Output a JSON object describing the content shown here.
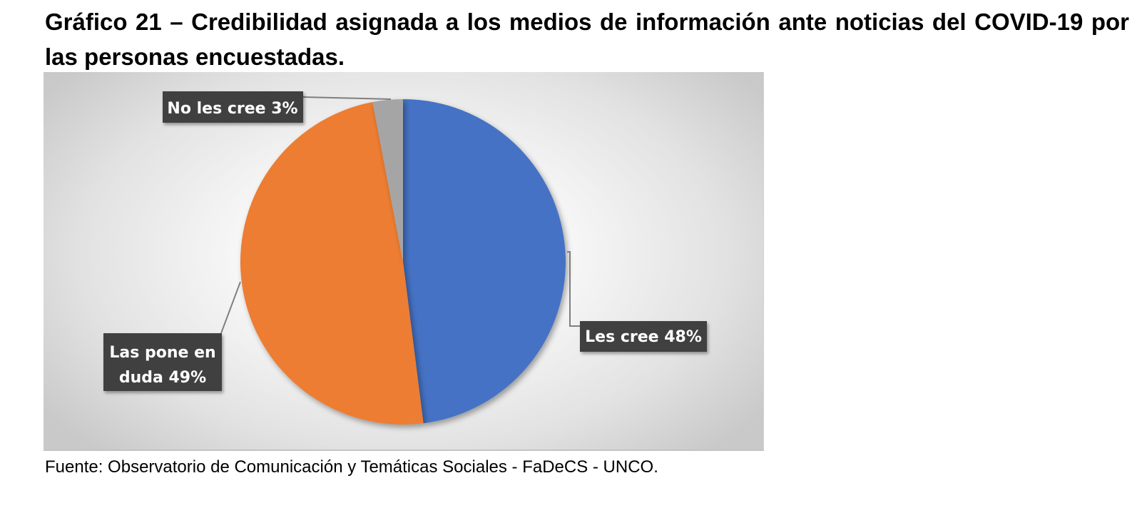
{
  "title": "Gráfico 21 – Credibilidad asignada a los medios de información ante noticias del COVID-19 por las personas encuestadas.",
  "source": "Fuente: Observatorio de Comunicación y Temáticas Sociales - FaDeCS - UNCO.",
  "chart_data": {
    "type": "pie",
    "categories": [
      "Les cree",
      "Las pone en duda",
      "No les cree"
    ],
    "values": [
      48,
      49,
      3
    ],
    "unit": "%",
    "data_labels": [
      [
        "Les cree 48%"
      ],
      [
        "Las pone en",
        "duda 49%"
      ],
      [
        "No les cree 3%"
      ]
    ],
    "colors": [
      "#4472C4",
      "#ED7D31",
      "#A5A5A5"
    ],
    "label_box_color": "#404040",
    "leader_line_color": "#7f7f7f",
    "legend": "none"
  }
}
